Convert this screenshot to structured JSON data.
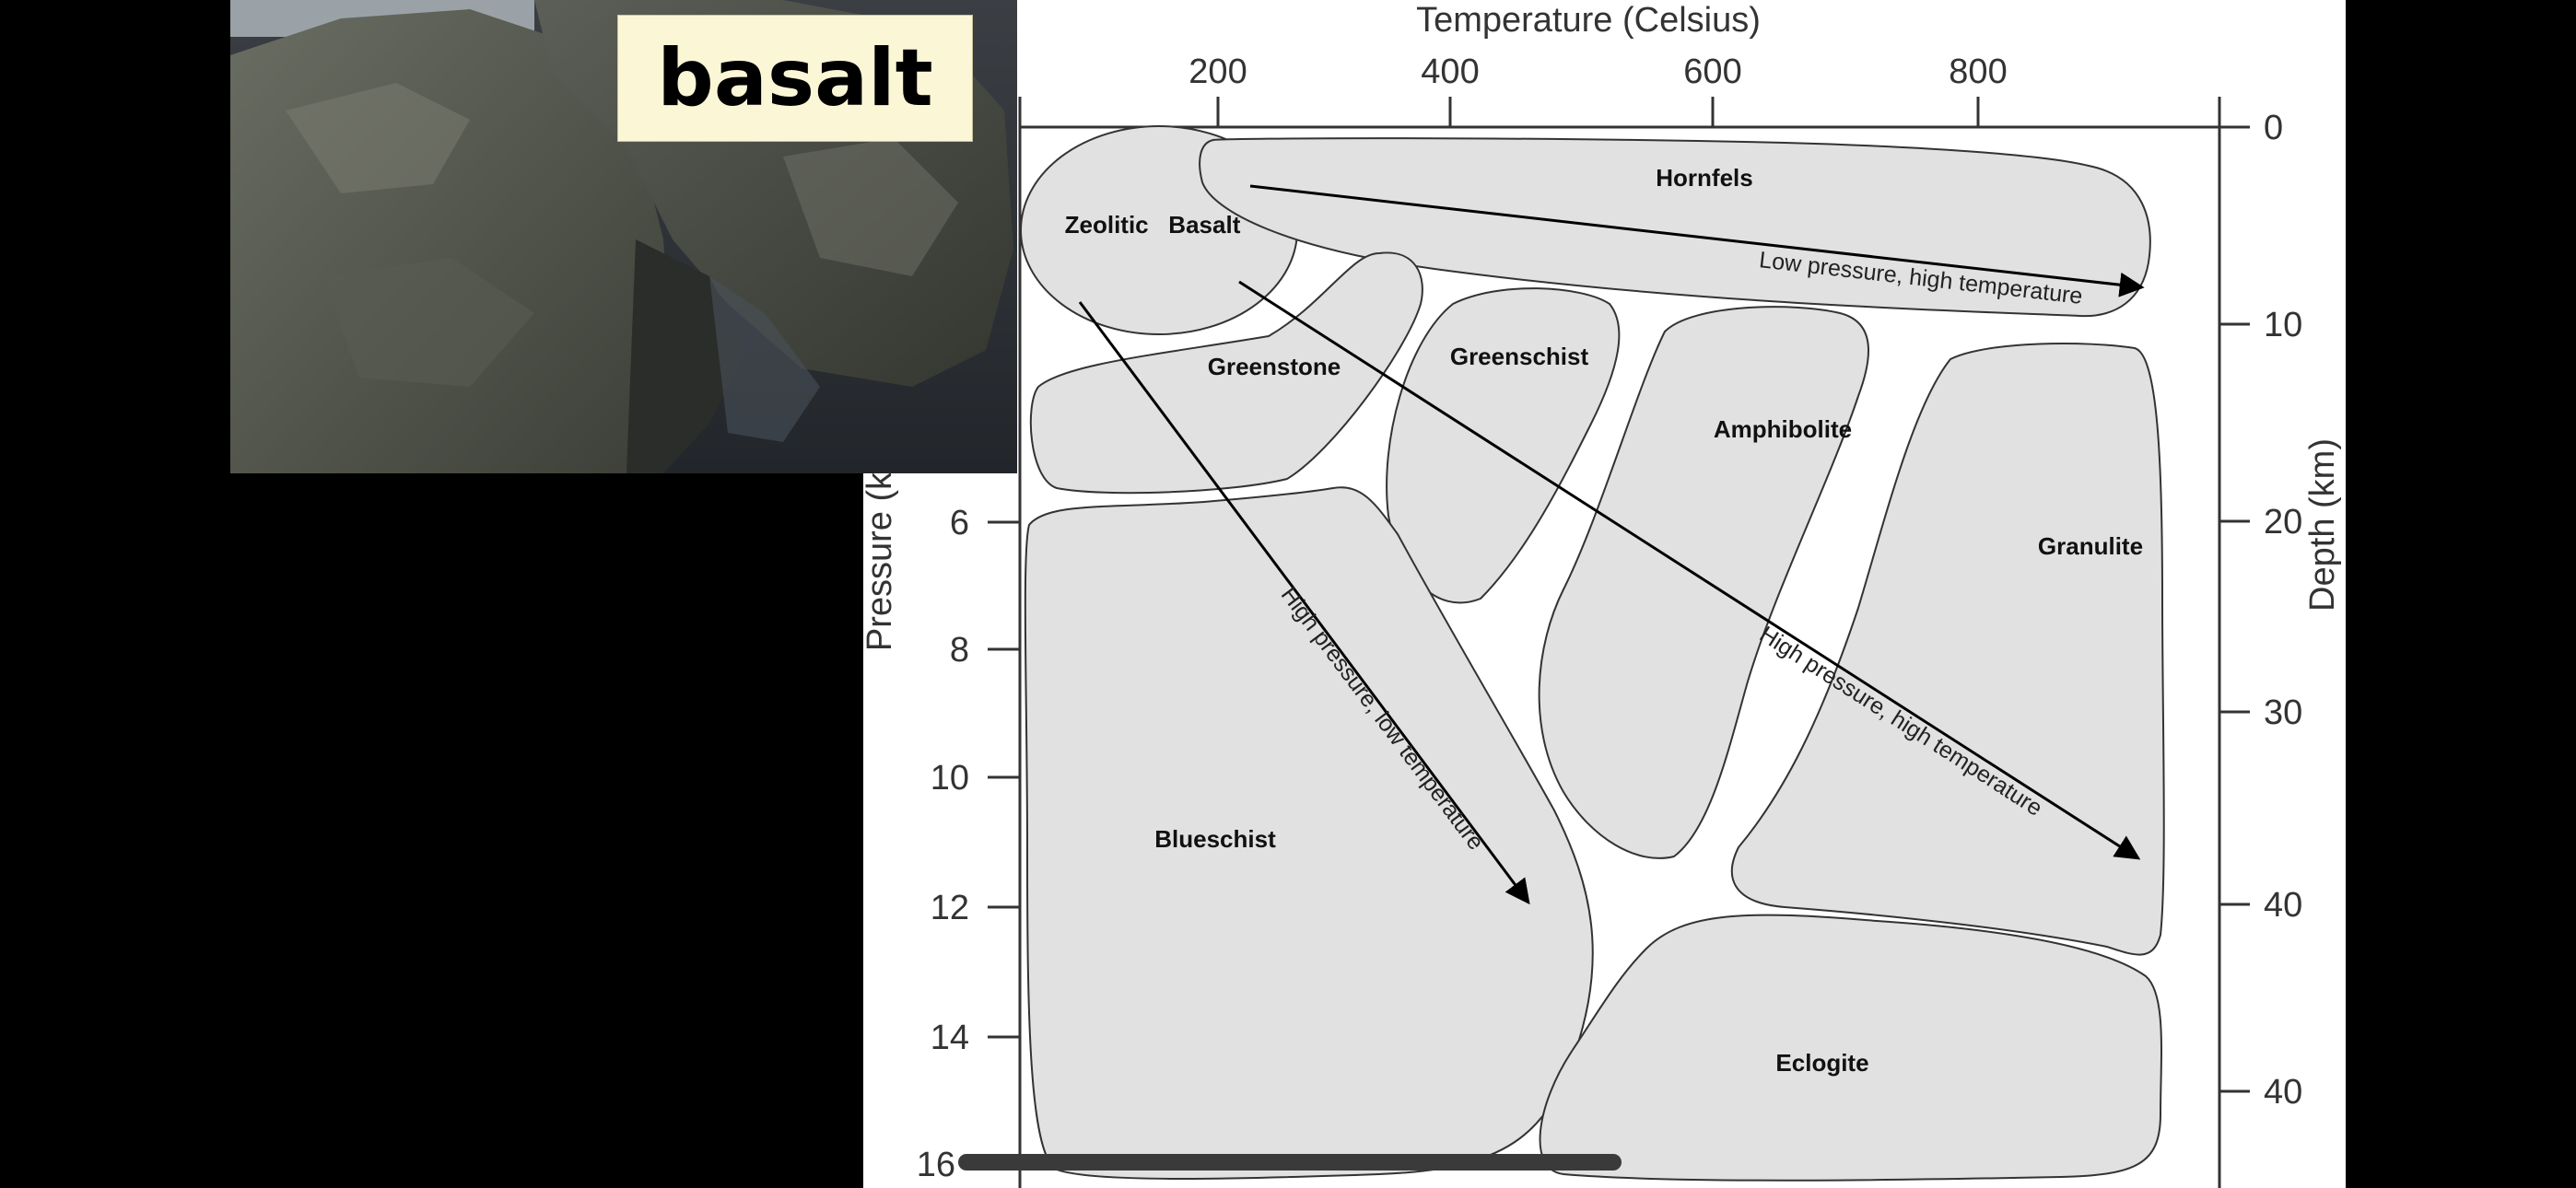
{
  "photo": {
    "label": "basalt",
    "icon": "basalt-rock-photo"
  },
  "diagram": {
    "x_axis_title": "Temperature (Celsius)",
    "x_ticks": [
      "200",
      "400",
      "600",
      "800"
    ],
    "left_axis_title": "Pressure (k",
    "left_ticks": [
      "6",
      "8",
      "10",
      "12",
      "14",
      "16"
    ],
    "right_axis_title": "Depth (km)",
    "right_ticks": [
      "0",
      "10",
      "20",
      "30",
      "40",
      "40"
    ],
    "facies": {
      "zeolitic_basalt": "Zeolitic   Basalt",
      "hornfels": "Hornfels",
      "greenstone": "Greenstone",
      "greenschist": "Greenschist",
      "amphibolite": "Amphibolite",
      "granulite": "Granulite",
      "blueschist": "Blueschist",
      "eclogite": "Eclogite"
    },
    "arrows": {
      "low_p_high_t": "Low pressure, high temperature",
      "high_p_low_t": "High pressure, low temperature",
      "high_p_high_t": "High pressure, high temperature"
    },
    "region_fill": "#e1e1e1",
    "line_color": "#000000"
  }
}
